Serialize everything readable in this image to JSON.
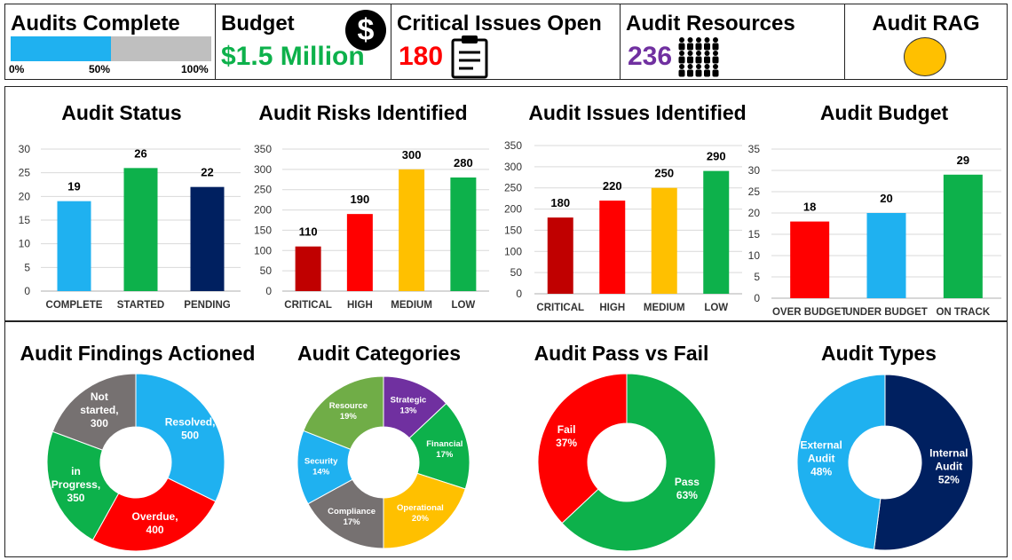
{
  "kpis": {
    "audits_complete": {
      "title": "Audits Complete",
      "progress": 0.5,
      "ticks": [
        "0%",
        "50%",
        "100%"
      ],
      "fill_color": "#1fb1f0"
    },
    "budget": {
      "title": "Budget",
      "value": "$1.5 Million",
      "icon": "dollar-icon",
      "icon_glyph": "$",
      "color": "#0db14b"
    },
    "critical_issues": {
      "title": "Critical Issues Open",
      "value": "180",
      "icon": "clipboard-icon",
      "color": "#ff0000"
    },
    "resources": {
      "title": "Audit Resources",
      "value": "236",
      "icon": "people-group-icon",
      "color": "#7030a0"
    },
    "rag": {
      "title": "Audit RAG",
      "status_color": "#ffc000"
    }
  },
  "chart_data": [
    {
      "type": "bar",
      "title": "Audit Status",
      "categories": [
        "COMPLETE",
        "STARTED",
        "PENDING"
      ],
      "values": [
        19,
        26,
        22
      ],
      "colors": [
        "#1fb1f0",
        "#0db14b",
        "#002060"
      ],
      "ylim": [
        0,
        30
      ],
      "yticks": [
        0,
        5,
        10,
        15,
        20,
        25,
        30
      ],
      "grid": true
    },
    {
      "type": "bar",
      "title": "Audit Risks Identified",
      "categories": [
        "CRITICAL",
        "HIGH",
        "MEDIUM",
        "LOW"
      ],
      "values": [
        110,
        190,
        300,
        280
      ],
      "colors": [
        "#c00000",
        "#ff0000",
        "#ffc000",
        "#0db14b"
      ],
      "ylim": [
        0,
        350
      ],
      "yticks": [
        0,
        50,
        100,
        150,
        200,
        250,
        300,
        350
      ],
      "grid": true
    },
    {
      "type": "bar",
      "title": "Audit Issues Identified",
      "categories": [
        "CRITICAL",
        "HIGH",
        "MEDIUM",
        "LOW"
      ],
      "values": [
        180,
        220,
        250,
        290
      ],
      "colors": [
        "#c00000",
        "#ff0000",
        "#ffc000",
        "#0db14b"
      ],
      "ylim": [
        0,
        350
      ],
      "yticks": [
        0,
        50,
        100,
        150,
        200,
        250,
        300,
        350
      ],
      "grid": true
    },
    {
      "type": "bar",
      "title": "Audit Budget",
      "categories": [
        "OVER BUDGET",
        "UNDER BUDGET",
        "ON TRACK"
      ],
      "values": [
        18,
        20,
        29
      ],
      "colors": [
        "#ff0000",
        "#1fb1f0",
        "#0db14b"
      ],
      "ylim": [
        0,
        35
      ],
      "yticks": [
        0,
        5,
        10,
        15,
        20,
        25,
        30,
        35
      ],
      "grid": true
    },
    {
      "type": "pie",
      "title": "Audit Findings Actioned",
      "slices": [
        {
          "label": [
            "Resolved,",
            "500"
          ],
          "value": 500,
          "color": "#1fb1f0"
        },
        {
          "label": [
            "Overdue,",
            "400"
          ],
          "value": 400,
          "color": "#ff0000"
        },
        {
          "label": [
            "in",
            "Progress,",
            "350"
          ],
          "value": 350,
          "color": "#0db14b"
        },
        {
          "label": [
            "Not",
            "started,",
            "300"
          ],
          "value": 300,
          "color": "#767171"
        }
      ]
    },
    {
      "type": "pie",
      "title": "Audit Categories",
      "slices": [
        {
          "label": [
            "Strategic",
            "13%"
          ],
          "value": 13,
          "color": "#7030a0"
        },
        {
          "label": [
            "Financial",
            "17%"
          ],
          "value": 17,
          "color": "#0db14b"
        },
        {
          "label": [
            "Operational",
            "20%"
          ],
          "value": 20,
          "color": "#ffc000"
        },
        {
          "label": [
            "Compliance",
            "17%"
          ],
          "value": 17,
          "color": "#767171"
        },
        {
          "label": [
            "Security",
            "14%"
          ],
          "value": 14,
          "color": "#1fb1f0"
        },
        {
          "label": [
            "Resource",
            "19%"
          ],
          "value": 19,
          "color": "#70ad47"
        }
      ]
    },
    {
      "type": "pie",
      "title": "Audit Pass vs Fail",
      "slices": [
        {
          "label": [
            "Pass",
            "63%"
          ],
          "value": 63,
          "color": "#0db14b"
        },
        {
          "label": [
            "Fail",
            "37%"
          ],
          "value": 37,
          "color": "#ff0000"
        }
      ]
    },
    {
      "type": "pie",
      "title": "Audit Types",
      "slices": [
        {
          "label": [
            "Internal",
            "Audit",
            "52%"
          ],
          "value": 52,
          "color": "#002060"
        },
        {
          "label": [
            "External",
            "Audit",
            "48%"
          ],
          "value": 48,
          "color": "#1fb1f0"
        }
      ]
    }
  ]
}
